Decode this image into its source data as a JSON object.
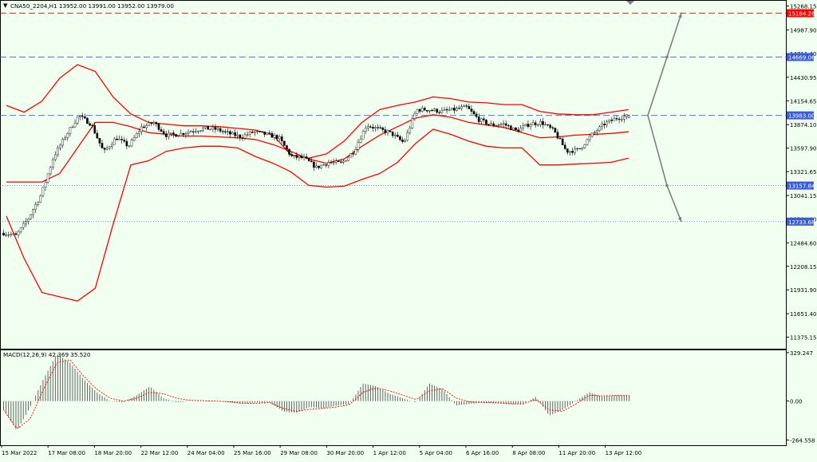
{
  "header": {
    "symbol_line": "CNA50_2204,H1  13952.00 13991.00 13952.00 13979.00",
    "macd_label": "MACD(12,26,9) 42.369 35.520"
  },
  "colors": {
    "background": "#f0fff0",
    "candle": "#000000",
    "bands": "#ff0000",
    "level_blue": "#3a5bd9",
    "level_red": "#ff0000",
    "projection": "#808080",
    "macd_signal": "#ff0000"
  },
  "chart_data": [
    {
      "type": "candlestick",
      "title": "CNA50_2204,H1",
      "ohlc_last": {
        "open": 13952.0,
        "high": 13991.0,
        "low": 13952.0,
        "close": 13979.0
      },
      "y_ticks": [
        "15268.15",
        "14987.90",
        "14711.40",
        "14430.95",
        "14154.65",
        "13874.10",
        "13597.90",
        "13321.65",
        "13041.15",
        "12764.90",
        "12484.60",
        "12208.15",
        "11931.90",
        "11651.40",
        "11375.15"
      ],
      "x_ticks": [
        "15 Mar 2022",
        "17 Mar 08:00",
        "18 Mar 20:00",
        "22 Mar 12:00",
        "24 Mar 04:00",
        "25 Mar 16:00",
        "29 Mar 08:00",
        "30 Mar 20:00",
        "1 Apr 12:00",
        "5 Apr 04:00",
        "6 Apr 16:00",
        "8 Apr 08:00",
        "11 Apr 20:00",
        "13 Apr 12:00"
      ],
      "ylim": [
        11240,
        15330
      ],
      "levels": [
        {
          "value": 15184.26,
          "label": "15184.26",
          "style": "dashed",
          "color": "red"
        },
        {
          "value": 14669.06,
          "label": "14669.06",
          "style": "dashed",
          "color": "blue"
        },
        {
          "value": 13983.0,
          "label": "13983.00",
          "style": "dashed",
          "color": "blue"
        },
        {
          "value": 13157.84,
          "label": "13157.84",
          "style": "dotted",
          "color": "blue"
        },
        {
          "value": 12733.68,
          "label": "12733.68",
          "style": "dotted",
          "color": "blue"
        }
      ],
      "projection": {
        "start": 13983,
        "up_waypoint": 14669,
        "up_target": 15184,
        "down_waypoint": 13157,
        "down_target": 12733
      },
      "price_anchors": [
        12600,
        12570,
        12780,
        13050,
        13500,
        13750,
        13980,
        13880,
        13550,
        13720,
        13620,
        13840,
        13900,
        13750,
        13760,
        13800,
        13830,
        13820,
        13770,
        13730,
        13790,
        13760,
        13720,
        13500,
        13480,
        13370,
        13430,
        13420,
        13560,
        13870,
        13820,
        13770,
        13660,
        14050,
        14050,
        14030,
        14050,
        14080,
        13930,
        13870,
        13880,
        13800,
        13880,
        13900,
        13800,
        13560,
        13580,
        13750,
        13880,
        13950,
        13980
      ],
      "bollinger": {
        "upper": [
          14100,
          14020,
          14150,
          14420,
          14580,
          14500,
          14200,
          14000,
          13900,
          13880,
          13860,
          13860,
          13850,
          13830,
          13810,
          13750,
          13520,
          13480,
          13530,
          13680,
          13900,
          14050,
          14100,
          14140,
          14200,
          14180,
          14140,
          14130,
          14110,
          14110,
          14030,
          14000,
          13990,
          13990,
          14020,
          14050
        ],
        "middle": [
          13200,
          13200,
          13200,
          13300,
          13600,
          13900,
          13900,
          13850,
          13780,
          13760,
          13740,
          13740,
          13730,
          13720,
          13700,
          13640,
          13560,
          13470,
          13420,
          13470,
          13620,
          13750,
          13850,
          13950,
          13990,
          13960,
          13900,
          13870,
          13840,
          13780,
          13720,
          13730,
          13750,
          13760,
          13770,
          13790
        ],
        "lower": [
          12800,
          12300,
          11900,
          11850,
          11800,
          11950,
          12700,
          13400,
          13450,
          13560,
          13600,
          13620,
          13620,
          13600,
          13500,
          13420,
          13320,
          13160,
          13140,
          13150,
          13230,
          13300,
          13430,
          13650,
          13820,
          13760,
          13680,
          13620,
          13600,
          13600,
          13400,
          13400,
          13410,
          13420,
          13430,
          13480
        ]
      }
    },
    {
      "type": "bar",
      "title": "MACD(12,26,9) 42.369 35.520",
      "y_ticks": [
        "329.247",
        "0.00",
        "-264.558"
      ],
      "ylim": [
        -300,
        345
      ],
      "macd_anchors": [
        -60,
        -200,
        -40,
        150,
        320,
        260,
        150,
        60,
        0,
        -10,
        40,
        100,
        20,
        -10,
        0,
        5,
        0,
        -10,
        -20,
        -10,
        -10,
        -70,
        -80,
        -40,
        -50,
        -30,
        -20,
        120,
        100,
        50,
        20,
        -10,
        120,
        80,
        -30,
        -20,
        -10,
        -15,
        -20,
        -20,
        30,
        -100,
        -60,
        0,
        60,
        30,
        40,
        42
      ],
      "signal_anchors": [
        -60,
        -190,
        -120,
        80,
        260,
        280,
        170,
        80,
        20,
        0,
        20,
        60,
        50,
        20,
        5,
        3,
        0,
        -5,
        -15,
        -15,
        -10,
        -50,
        -70,
        -55,
        -50,
        -40,
        -25,
        60,
        90,
        70,
        40,
        10,
        70,
        85,
        20,
        -5,
        -10,
        -12,
        -18,
        -20,
        10,
        -60,
        -70,
        -20,
        40,
        35,
        38,
        36
      ]
    }
  ]
}
